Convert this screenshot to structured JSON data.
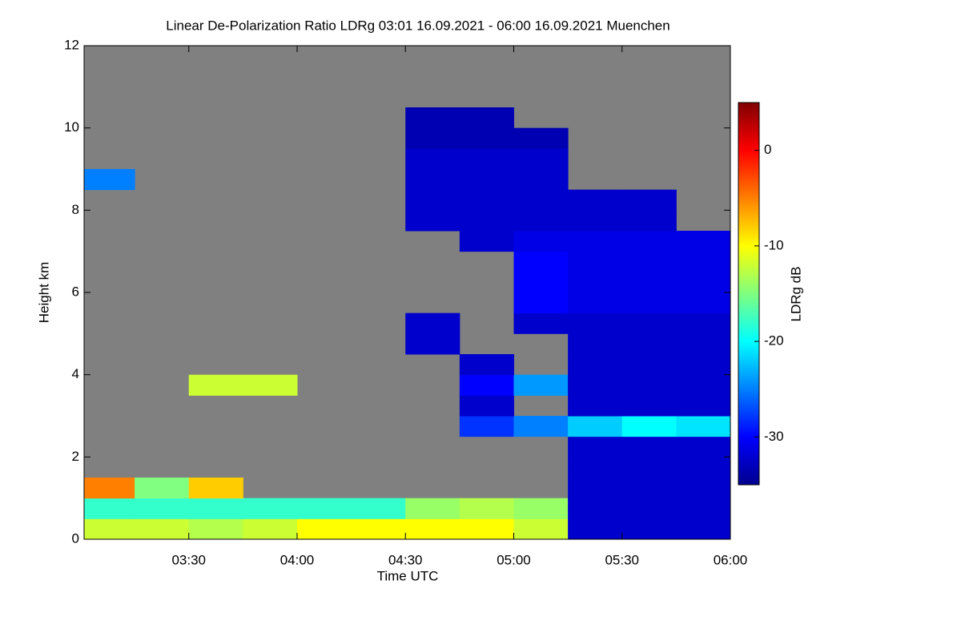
{
  "chart_data": {
    "type": "heatmap",
    "title": "Linear De-Polarization Ratio LDRg   03:01 16.09.2021 - 06:00 16.09.2021 Muenchen",
    "x_label": "Time UTC",
    "y_label": "Height km",
    "colorbar_label": "LDRg dB",
    "x_bins": [
      3.0167,
      3.25,
      3.5,
      3.75,
      4.0,
      4.25,
      4.5,
      4.75,
      5.0,
      5.25,
      5.5,
      5.75,
      6.0
    ],
    "y_bins": [
      0,
      0.5,
      1,
      1.5,
      2,
      2.5,
      3,
      3.5,
      4,
      4.5,
      5,
      5.5,
      6,
      6.5,
      7,
      7.5,
      8,
      8.5,
      9,
      9.5,
      10,
      10.5,
      11,
      11.5,
      12
    ],
    "values": [
      [
        -12,
        -12,
        -13,
        -12,
        -10,
        -10,
        -10,
        -10,
        -12,
        -32,
        -32,
        -32
      ],
      [
        -18,
        -18,
        -18,
        -18,
        -18,
        -18,
        -14,
        -13,
        -14,
        -32,
        -32,
        -32
      ],
      [
        -5,
        -15,
        -8,
        null,
        null,
        null,
        null,
        null,
        null,
        -32,
        -32,
        -32
      ],
      [
        null,
        null,
        null,
        null,
        null,
        null,
        null,
        null,
        null,
        -32,
        -32,
        -32
      ],
      [
        null,
        null,
        null,
        null,
        null,
        null,
        null,
        null,
        null,
        -32,
        -32,
        -32
      ],
      [
        null,
        null,
        null,
        null,
        null,
        null,
        null,
        -28,
        -25,
        -22,
        -20,
        -21
      ],
      [
        null,
        null,
        null,
        null,
        null,
        null,
        null,
        -32,
        null,
        -32,
        -32,
        -32
      ],
      [
        null,
        null,
        -12,
        -12,
        null,
        null,
        null,
        -30,
        -24,
        -32,
        -32,
        -32
      ],
      [
        null,
        null,
        null,
        null,
        null,
        null,
        null,
        -32,
        null,
        -32,
        -32,
        -32
      ],
      [
        null,
        null,
        null,
        null,
        null,
        null,
        -32,
        null,
        null,
        -32,
        -32,
        -32
      ],
      [
        null,
        null,
        null,
        null,
        null,
        null,
        -32,
        null,
        -32,
        -32,
        -32,
        -32
      ],
      [
        null,
        null,
        null,
        null,
        null,
        null,
        null,
        null,
        -30,
        -31,
        -31,
        -31
      ],
      [
        null,
        null,
        null,
        null,
        null,
        null,
        null,
        null,
        -30,
        -31,
        -31,
        -31
      ],
      [
        null,
        null,
        null,
        null,
        null,
        null,
        null,
        null,
        -30,
        -31,
        -31,
        -31
      ],
      [
        null,
        null,
        null,
        null,
        null,
        null,
        null,
        -32,
        -31,
        -31,
        -31,
        -31
      ],
      [
        null,
        null,
        null,
        null,
        null,
        null,
        -32,
        -32,
        -32,
        -32,
        -32,
        null
      ],
      [
        null,
        null,
        null,
        null,
        null,
        null,
        -32,
        -32,
        -32,
        -32,
        -32,
        null
      ],
      [
        -25,
        null,
        null,
        null,
        null,
        null,
        -32,
        -32,
        -32,
        null,
        null,
        null
      ],
      [
        null,
        null,
        null,
        null,
        null,
        null,
        -32,
        -32,
        -32,
        null,
        null,
        null
      ],
      [
        null,
        null,
        null,
        null,
        null,
        null,
        -33,
        -33,
        -33,
        null,
        null,
        null
      ],
      [
        null,
        null,
        null,
        null,
        null,
        null,
        -33,
        -33,
        null,
        null,
        null,
        null
      ],
      [
        null,
        null,
        null,
        null,
        null,
        null,
        null,
        null,
        null,
        null,
        null,
        null
      ],
      [
        null,
        null,
        null,
        null,
        null,
        null,
        null,
        null,
        null,
        null,
        null,
        null
      ],
      [
        null,
        null,
        null,
        null,
        null,
        null,
        null,
        null,
        null,
        null,
        null,
        null
      ]
    ],
    "no_data_color": "#808080",
    "colormap": "jet",
    "xlim": [
      3.0167,
      6.0
    ],
    "xticks": [
      {
        "value": 3.5,
        "label": "03:30"
      },
      {
        "value": 4.0,
        "label": "04:00"
      },
      {
        "value": 4.5,
        "label": "04:30"
      },
      {
        "value": 5.0,
        "label": "05:00"
      },
      {
        "value": 5.5,
        "label": "05:30"
      },
      {
        "value": 6.0,
        "label": "06:00"
      }
    ],
    "ylim": [
      0,
      12
    ],
    "yticks": [
      0,
      2,
      4,
      6,
      8,
      10,
      12
    ],
    "zlim": [
      -35,
      5
    ],
    "zticks": [
      0,
      -10,
      -20,
      -30
    ]
  }
}
